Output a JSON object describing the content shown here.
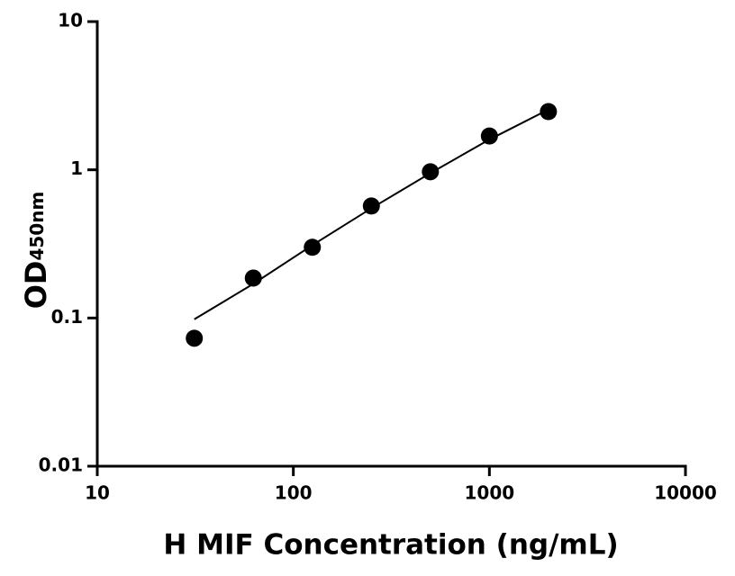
{
  "chart_data": {
    "type": "scatter",
    "x_label": "H MIF Concentration (ng/mL)",
    "y_label": "OD",
    "y_label_subscript": "450nm",
    "x_scale": "log",
    "y_scale": "log",
    "xlim": [
      10,
      10000
    ],
    "ylim": [
      0.01,
      10
    ],
    "xticks": [
      10,
      100,
      1000,
      10000
    ],
    "yticks": [
      0.01,
      0.1,
      1,
      10
    ],
    "series": [
      {
        "type": "scatter",
        "color": "#000000",
        "x": [
          31.25,
          62.5,
          125,
          250,
          500,
          1000,
          2000
        ],
        "values": [
          0.073,
          0.186,
          0.3,
          0.57,
          0.97,
          1.69,
          2.47
        ]
      },
      {
        "type": "line",
        "color": "#000000",
        "x": [
          31.25,
          62.5,
          125,
          250,
          500,
          1000,
          2000
        ],
        "values": [
          0.098,
          0.17,
          0.31,
          0.55,
          0.95,
          1.6,
          2.55
        ]
      }
    ]
  }
}
